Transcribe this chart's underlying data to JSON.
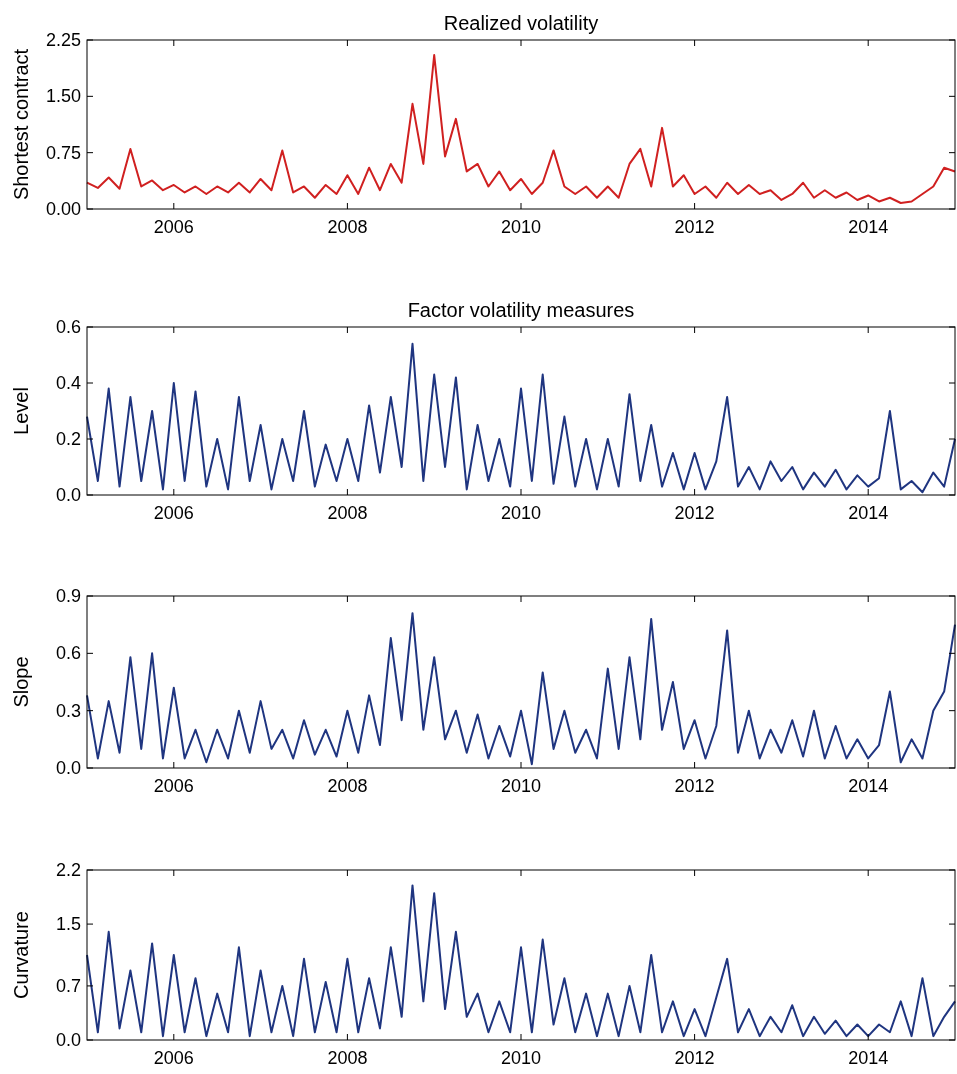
{
  "chart_data": [
    {
      "type": "line",
      "title": "Realized volatility",
      "ylabel": "Shortest contract",
      "xlim": [
        2005,
        2015
      ],
      "xticks": [
        2006,
        2008,
        2010,
        2012,
        2014
      ],
      "ylim": [
        0,
        2.25
      ],
      "yticks": [
        {
          "value": 0,
          "label": "0.00"
        },
        {
          "value": 0.75,
          "label": "0.75"
        },
        {
          "value": 1.5,
          "label": "1.50"
        },
        {
          "value": 2.25,
          "label": "2.25"
        }
      ],
      "x": [
        2005,
        2005.125,
        2005.25,
        2005.375,
        2005.5,
        2005.625,
        2005.75,
        2005.875,
        2006,
        2006.125,
        2006.25,
        2006.375,
        2006.5,
        2006.625,
        2006.75,
        2006.875,
        2007,
        2007.125,
        2007.25,
        2007.375,
        2007.5,
        2007.625,
        2007.75,
        2007.875,
        2008,
        2008.125,
        2008.25,
        2008.375,
        2008.5,
        2008.625,
        2008.75,
        2008.875,
        2009,
        2009.125,
        2009.25,
        2009.375,
        2009.5,
        2009.625,
        2009.75,
        2009.875,
        2010,
        2010.125,
        2010.25,
        2010.375,
        2010.5,
        2010.625,
        2010.75,
        2010.875,
        2011,
        2011.125,
        2011.25,
        2011.375,
        2011.5,
        2011.625,
        2011.75,
        2011.875,
        2012,
        2012.125,
        2012.25,
        2012.375,
        2012.5,
        2012.625,
        2012.75,
        2012.875,
        2013,
        2013.125,
        2013.25,
        2013.375,
        2013.5,
        2013.625,
        2013.75,
        2013.875,
        2014,
        2014.125,
        2014.25,
        2014.375,
        2014.5,
        2014.625,
        2014.75,
        2014.875,
        2015
      ],
      "series": [
        {
          "color": "#d02020",
          "values": [
            0.35,
            0.28,
            0.42,
            0.27,
            0.8,
            0.3,
            0.38,
            0.25,
            0.32,
            0.22,
            0.3,
            0.2,
            0.3,
            0.22,
            0.35,
            0.22,
            0.4,
            0.25,
            0.78,
            0.22,
            0.3,
            0.15,
            0.32,
            0.2,
            0.45,
            0.2,
            0.55,
            0.25,
            0.6,
            0.35,
            1.4,
            0.6,
            2.05,
            0.7,
            1.2,
            0.5,
            0.6,
            0.3,
            0.5,
            0.25,
            0.4,
            0.2,
            0.35,
            0.78,
            0.3,
            0.2,
            0.3,
            0.15,
            0.3,
            0.15,
            0.6,
            0.8,
            0.3,
            1.08,
            0.3,
            0.45,
            0.2,
            0.3,
            0.15,
            0.35,
            0.2,
            0.32,
            0.2,
            0.25,
            0.12,
            0.2,
            0.35,
            0.15,
            0.25,
            0.15,
            0.22,
            0.12,
            0.18,
            0.1,
            0.15,
            0.08,
            0.1,
            0.2,
            0.3,
            0.55,
            0.5
          ]
        }
      ]
    },
    {
      "type": "line",
      "title": "Factor volatility measures",
      "ylabel": "Level",
      "xlim": [
        2005,
        2015
      ],
      "xticks": [
        2006,
        2008,
        2010,
        2012,
        2014
      ],
      "ylim": [
        0,
        0.6
      ],
      "yticks": [
        {
          "value": 0,
          "label": "0.0"
        },
        {
          "value": 0.2,
          "label": "0.2"
        },
        {
          "value": 0.4,
          "label": "0.4"
        },
        {
          "value": 0.6,
          "label": "0.6"
        }
      ],
      "x": [
        2005,
        2005.125,
        2005.25,
        2005.375,
        2005.5,
        2005.625,
        2005.75,
        2005.875,
        2006,
        2006.125,
        2006.25,
        2006.375,
        2006.5,
        2006.625,
        2006.75,
        2006.875,
        2007,
        2007.125,
        2007.25,
        2007.375,
        2007.5,
        2007.625,
        2007.75,
        2007.875,
        2008,
        2008.125,
        2008.25,
        2008.375,
        2008.5,
        2008.625,
        2008.75,
        2008.875,
        2009,
        2009.125,
        2009.25,
        2009.375,
        2009.5,
        2009.625,
        2009.75,
        2009.875,
        2010,
        2010.125,
        2010.25,
        2010.375,
        2010.5,
        2010.625,
        2010.75,
        2010.875,
        2011,
        2011.125,
        2011.25,
        2011.375,
        2011.5,
        2011.625,
        2011.75,
        2011.875,
        2012,
        2012.125,
        2012.25,
        2012.375,
        2012.5,
        2012.625,
        2012.75,
        2012.875,
        2013,
        2013.125,
        2013.25,
        2013.375,
        2013.5,
        2013.625,
        2013.75,
        2013.875,
        2014,
        2014.125,
        2014.25,
        2014.375,
        2014.5,
        2014.625,
        2014.75,
        2014.875,
        2015
      ],
      "series": [
        {
          "color": "#1f3580",
          "values": [
            0.28,
            0.05,
            0.38,
            0.03,
            0.35,
            0.05,
            0.3,
            0.02,
            0.4,
            0.05,
            0.37,
            0.03,
            0.2,
            0.02,
            0.35,
            0.05,
            0.25,
            0.02,
            0.2,
            0.05,
            0.3,
            0.03,
            0.18,
            0.05,
            0.2,
            0.05,
            0.32,
            0.08,
            0.35,
            0.1,
            0.54,
            0.05,
            0.43,
            0.1,
            0.42,
            0.02,
            0.25,
            0.05,
            0.2,
            0.03,
            0.38,
            0.05,
            0.43,
            0.04,
            0.28,
            0.03,
            0.2,
            0.02,
            0.2,
            0.03,
            0.36,
            0.05,
            0.25,
            0.03,
            0.15,
            0.02,
            0.15,
            0.02,
            0.12,
            0.35,
            0.03,
            0.1,
            0.02,
            0.12,
            0.05,
            0.1,
            0.02,
            0.08,
            0.03,
            0.09,
            0.02,
            0.07,
            0.03,
            0.06,
            0.3,
            0.02,
            0.05,
            0.01,
            0.08,
            0.03,
            0.2
          ]
        }
      ]
    },
    {
      "type": "line",
      "ylabel": "Slope",
      "xlim": [
        2005,
        2015
      ],
      "xticks": [
        2006,
        2008,
        2010,
        2012,
        2014
      ],
      "ylim": [
        0,
        0.9
      ],
      "yticks": [
        {
          "value": 0,
          "label": "0.0"
        },
        {
          "value": 0.3,
          "label": "0.3"
        },
        {
          "value": 0.6,
          "label": "0.6"
        },
        {
          "value": 0.9,
          "label": "0.9"
        }
      ],
      "x": [
        2005,
        2005.125,
        2005.25,
        2005.375,
        2005.5,
        2005.625,
        2005.75,
        2005.875,
        2006,
        2006.125,
        2006.25,
        2006.375,
        2006.5,
        2006.625,
        2006.75,
        2006.875,
        2007,
        2007.125,
        2007.25,
        2007.375,
        2007.5,
        2007.625,
        2007.75,
        2007.875,
        2008,
        2008.125,
        2008.25,
        2008.375,
        2008.5,
        2008.625,
        2008.75,
        2008.875,
        2009,
        2009.125,
        2009.25,
        2009.375,
        2009.5,
        2009.625,
        2009.75,
        2009.875,
        2010,
        2010.125,
        2010.25,
        2010.375,
        2010.5,
        2010.625,
        2010.75,
        2010.875,
        2011,
        2011.125,
        2011.25,
        2011.375,
        2011.5,
        2011.625,
        2011.75,
        2011.875,
        2012,
        2012.125,
        2012.25,
        2012.375,
        2012.5,
        2012.625,
        2012.75,
        2012.875,
        2013,
        2013.125,
        2013.25,
        2013.375,
        2013.5,
        2013.625,
        2013.75,
        2013.875,
        2014,
        2014.125,
        2014.25,
        2014.375,
        2014.5,
        2014.625,
        2014.75,
        2014.875,
        2015
      ],
      "series": [
        {
          "color": "#1f3580",
          "values": [
            0.38,
            0.05,
            0.35,
            0.08,
            0.58,
            0.1,
            0.6,
            0.05,
            0.42,
            0.05,
            0.2,
            0.03,
            0.2,
            0.05,
            0.3,
            0.08,
            0.35,
            0.1,
            0.2,
            0.05,
            0.25,
            0.07,
            0.2,
            0.06,
            0.3,
            0.08,
            0.38,
            0.12,
            0.68,
            0.25,
            0.81,
            0.2,
            0.58,
            0.15,
            0.3,
            0.08,
            0.28,
            0.05,
            0.22,
            0.06,
            0.3,
            0.02,
            0.5,
            0.1,
            0.3,
            0.08,
            0.2,
            0.05,
            0.52,
            0.1,
            0.58,
            0.15,
            0.78,
            0.2,
            0.45,
            0.1,
            0.25,
            0.05,
            0.22,
            0.72,
            0.08,
            0.3,
            0.05,
            0.2,
            0.08,
            0.25,
            0.06,
            0.3,
            0.05,
            0.22,
            0.05,
            0.15,
            0.05,
            0.12,
            0.4,
            0.03,
            0.15,
            0.05,
            0.3,
            0.4,
            0.75
          ]
        }
      ]
    },
    {
      "type": "line",
      "ylabel": "Curvature",
      "xlim": [
        2005,
        2015
      ],
      "xticks": [
        2006,
        2008,
        2010,
        2012,
        2014
      ],
      "ylim": [
        0,
        2.2
      ],
      "yticks": [
        {
          "value": 0,
          "label": "0.0"
        },
        {
          "value": 0.7,
          "label": "0.7"
        },
        {
          "value": 1.5,
          "label": "1.5"
        },
        {
          "value": 2.2,
          "label": "2.2"
        }
      ],
      "x": [
        2005,
        2005.125,
        2005.25,
        2005.375,
        2005.5,
        2005.625,
        2005.75,
        2005.875,
        2006,
        2006.125,
        2006.25,
        2006.375,
        2006.5,
        2006.625,
        2006.75,
        2006.875,
        2007,
        2007.125,
        2007.25,
        2007.375,
        2007.5,
        2007.625,
        2007.75,
        2007.875,
        2008,
        2008.125,
        2008.25,
        2008.375,
        2008.5,
        2008.625,
        2008.75,
        2008.875,
        2009,
        2009.125,
        2009.25,
        2009.375,
        2009.5,
        2009.625,
        2009.75,
        2009.875,
        2010,
        2010.125,
        2010.25,
        2010.375,
        2010.5,
        2010.625,
        2010.75,
        2010.875,
        2011,
        2011.125,
        2011.25,
        2011.375,
        2011.5,
        2011.625,
        2011.75,
        2011.875,
        2012,
        2012.125,
        2012.25,
        2012.375,
        2012.5,
        2012.625,
        2012.75,
        2012.875,
        2013,
        2013.125,
        2013.25,
        2013.375,
        2013.5,
        2013.625,
        2013.75,
        2013.875,
        2014,
        2014.125,
        2014.25,
        2014.375,
        2014.5,
        2014.625,
        2014.75,
        2014.875,
        2015
      ],
      "series": [
        {
          "color": "#1f3580",
          "values": [
            1.1,
            0.1,
            1.4,
            0.15,
            0.9,
            0.1,
            1.25,
            0.05,
            1.1,
            0.1,
            0.8,
            0.05,
            0.6,
            0.1,
            1.2,
            0.05,
            0.9,
            0.1,
            0.7,
            0.05,
            1.05,
            0.1,
            0.75,
            0.1,
            1.05,
            0.1,
            0.8,
            0.15,
            1.2,
            0.3,
            2.0,
            0.5,
            1.9,
            0.4,
            1.4,
            0.3,
            0.6,
            0.1,
            0.5,
            0.1,
            1.2,
            0.1,
            1.3,
            0.2,
            0.8,
            0.1,
            0.6,
            0.05,
            0.6,
            0.05,
            0.7,
            0.1,
            1.1,
            0.1,
            0.5,
            0.05,
            0.4,
            0.05,
            0.55,
            1.05,
            0.1,
            0.4,
            0.05,
            0.3,
            0.1,
            0.45,
            0.05,
            0.3,
            0.08,
            0.25,
            0.05,
            0.2,
            0.05,
            0.2,
            0.1,
            0.5,
            0.05,
            0.8,
            0.05,
            0.3,
            0.5
          ]
        }
      ]
    }
  ]
}
